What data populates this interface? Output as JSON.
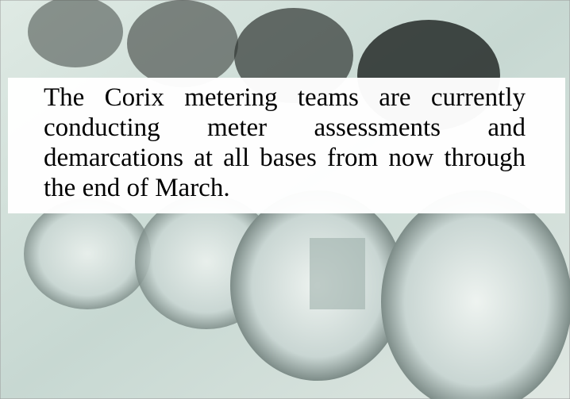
{
  "text": "The Corix metering teams are currently conducting meter assessments and demarcations at all bases from now through the end of March."
}
